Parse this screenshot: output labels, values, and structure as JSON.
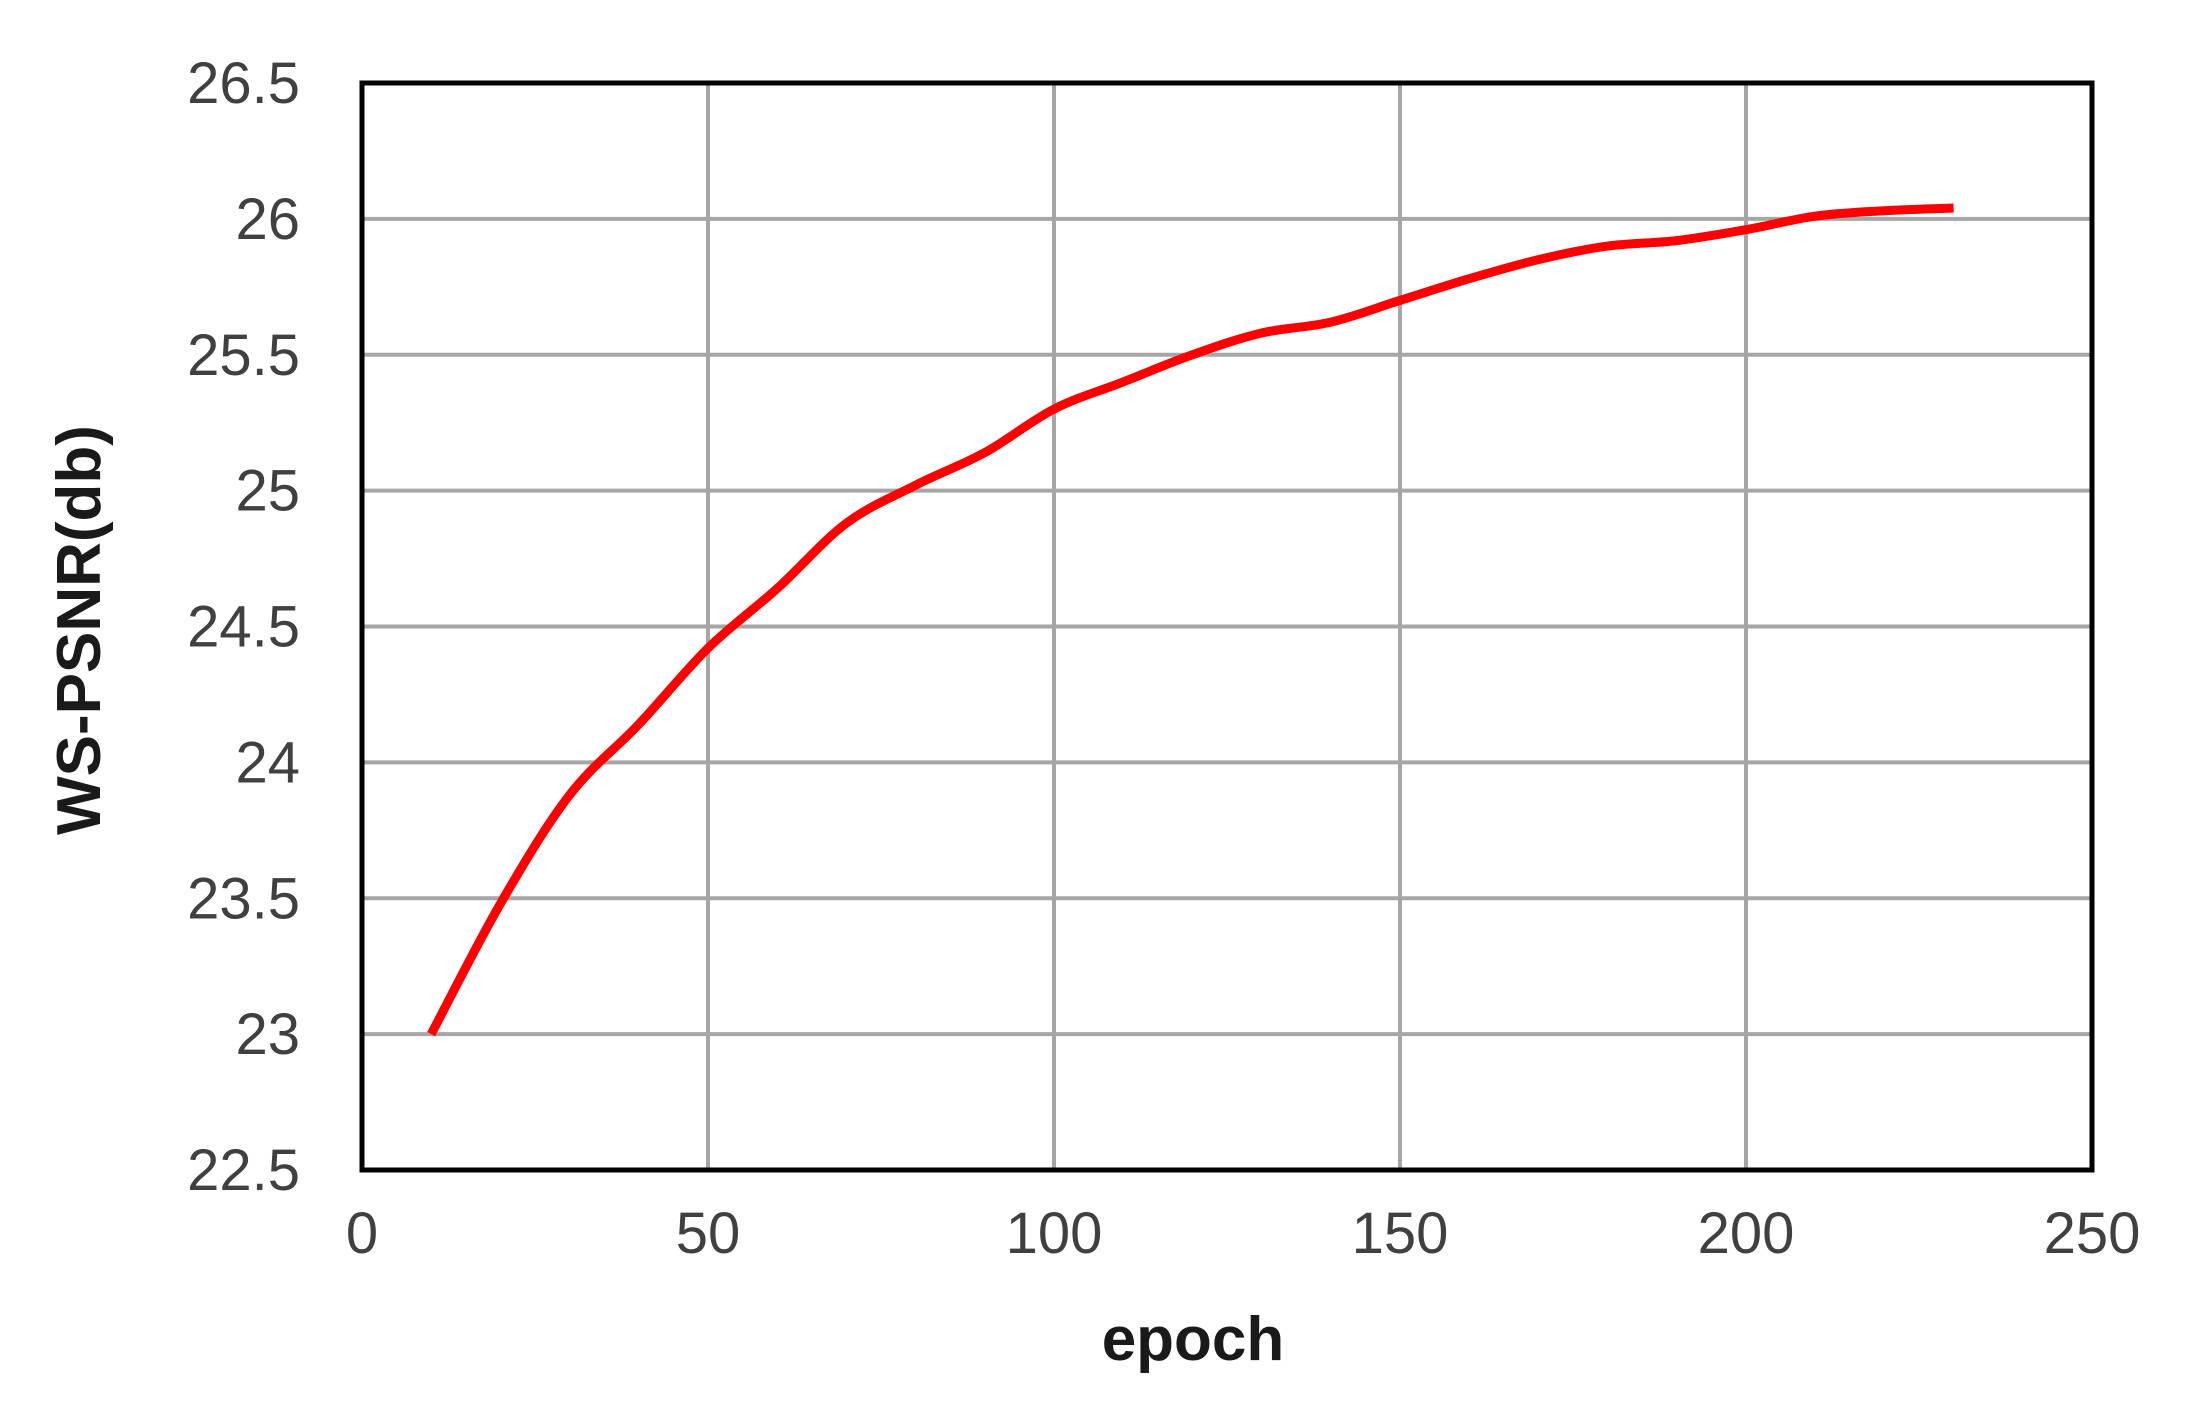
{
  "chart_data": {
    "type": "line",
    "xlabel": "epoch",
    "ylabel": "WS-PSNR(db)",
    "xlim": [
      0,
      250
    ],
    "ylim": [
      22.5,
      26.5
    ],
    "x_ticks": [
      "0",
      "50",
      "100",
      "150",
      "200",
      "250"
    ],
    "y_ticks": [
      "22.5",
      "23",
      "23.5",
      "24",
      "24.5",
      "25",
      "25.5",
      "26",
      "26.5"
    ],
    "grid": true,
    "series": [
      {
        "color": "#ff0000",
        "x": [
          10,
          20,
          30,
          40,
          50,
          60,
          70,
          80,
          90,
          100,
          110,
          120,
          130,
          140,
          150,
          160,
          170,
          180,
          190,
          200,
          210,
          220,
          230
        ],
        "y": [
          23.0,
          23.48,
          23.88,
          24.14,
          24.42,
          24.64,
          24.88,
          25.02,
          25.14,
          25.3,
          25.4,
          25.5,
          25.58,
          25.62,
          25.7,
          25.78,
          25.85,
          25.9,
          25.92,
          25.96,
          26.01,
          26.03,
          26.04
        ]
      }
    ]
  }
}
